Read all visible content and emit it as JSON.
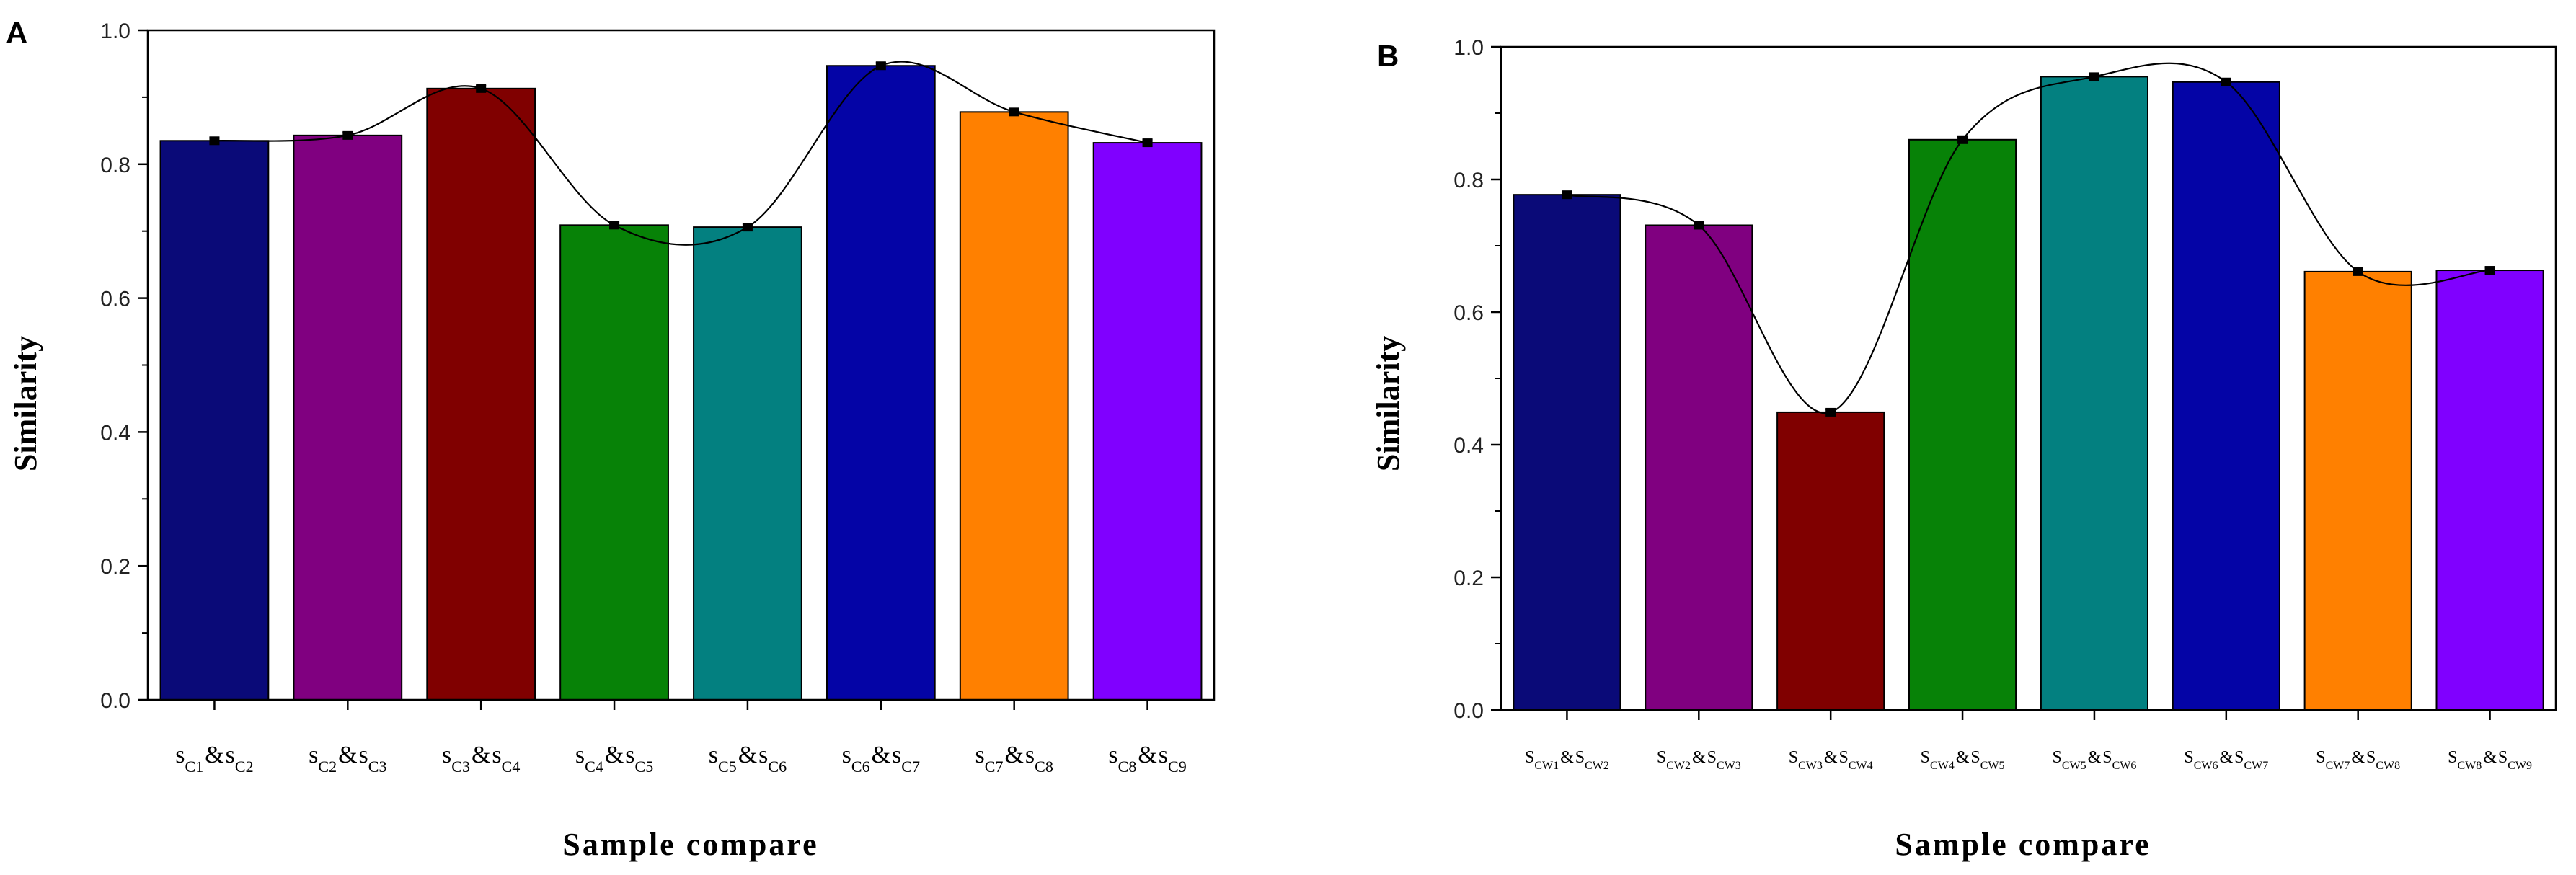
{
  "chart_data": [
    {
      "type": "bar",
      "panel": "A",
      "title": "",
      "xlabel": "Sample compare",
      "ylabel": "Similarity",
      "ylim": [
        0,
        1.0
      ],
      "yticks": [
        "0.0",
        "0.2",
        "0.4",
        "0.6",
        "0.8",
        "1.0"
      ],
      "categories": [
        {
          "a": "s",
          "a_sub": "C1",
          "amp": "&",
          "b": "s",
          "b_sub": "C2"
        },
        {
          "a": "s",
          "a_sub": "C2",
          "amp": "&",
          "b": "s",
          "b_sub": "C3"
        },
        {
          "a": "s",
          "a_sub": "C3",
          "amp": "&",
          "b": "s",
          "b_sub": "C4"
        },
        {
          "a": "s",
          "a_sub": "C4",
          "amp": "&",
          "b": "s",
          "b_sub": "C5"
        },
        {
          "a": "s",
          "a_sub": "C5",
          "amp": "&",
          "b": "s",
          "b_sub": "C6"
        },
        {
          "a": "s",
          "a_sub": "C6",
          "amp": "&",
          "b": "s",
          "b_sub": "C7"
        },
        {
          "a": "s",
          "a_sub": "C7",
          "amp": "&",
          "b": "s",
          "b_sub": "C8"
        },
        {
          "a": "s",
          "a_sub": "C8",
          "amp": "&",
          "b": "s",
          "b_sub": "C9"
        }
      ],
      "values": [
        0.835,
        0.843,
        0.913,
        0.709,
        0.706,
        0.947,
        0.878,
        0.832
      ],
      "colors": [
        "#0a0a78",
        "#800080",
        "#800000",
        "#078207",
        "#038080",
        "#0404a6",
        "#ff8000",
        "#8000ff"
      ],
      "trend_line": true
    },
    {
      "type": "bar",
      "panel": "B",
      "title": "",
      "xlabel": "Sample compare",
      "ylabel": "Similarity",
      "ylim": [
        0,
        1.0
      ],
      "yticks": [
        "0.0",
        "0.2",
        "0.4",
        "0.6",
        "0.8",
        "1.0"
      ],
      "categories": [
        {
          "a": "S",
          "a_sub": "CW1",
          "amp": "&",
          "b": "S",
          "b_sub": "CW2"
        },
        {
          "a": "S",
          "a_sub": "CW2",
          "amp": "&",
          "b": "S",
          "b_sub": "CW3"
        },
        {
          "a": "S",
          "a_sub": "CW3",
          "amp": "&",
          "b": "S",
          "b_sub": "CW4"
        },
        {
          "a": "S",
          "a_sub": "CW4",
          "amp": "&",
          "b": "S",
          "b_sub": "CW5"
        },
        {
          "a": "S",
          "a_sub": "CW5",
          "amp": "&",
          "b": "S",
          "b_sub": "CW6"
        },
        {
          "a": "S",
          "a_sub": "CW6",
          "amp": "&",
          "b": "S",
          "b_sub": "CW7"
        },
        {
          "a": "S",
          "a_sub": "CW7",
          "amp": "&",
          "b": "S",
          "b_sub": "CW8"
        },
        {
          "a": "S",
          "a_sub": "CW8",
          "amp": "&",
          "b": "S",
          "b_sub": "CW9"
        }
      ],
      "values": [
        0.777,
        0.731,
        0.449,
        0.86,
        0.955,
        0.947,
        0.661,
        0.663
      ],
      "colors": [
        "#0a0a78",
        "#800080",
        "#800000",
        "#078207",
        "#038080",
        "#0404a6",
        "#ff8000",
        "#8000ff"
      ],
      "trend_line": true
    }
  ]
}
